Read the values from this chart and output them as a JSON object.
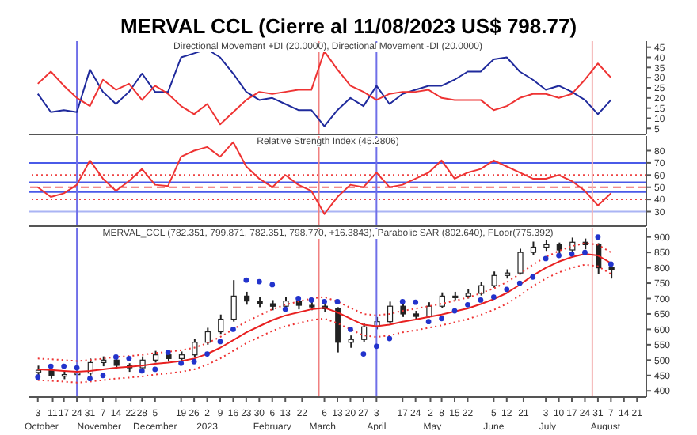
{
  "chart_data": [
    {
      "type": "line",
      "title": "MERVAL CCL (Cierre al 11/08/2023 US$ 798.77)",
      "subtitle": "Directional Movement +DI (20.0000), Directional Movement -DI (20.0000)",
      "x": [
        "2022-10-03",
        "2022-10-10",
        "2022-10-17",
        "2022-10-24",
        "2022-10-31",
        "2022-11-07",
        "2022-11-14",
        "2022-11-21",
        "2022-11-28",
        "2022-12-05",
        "2022-12-12",
        "2022-12-19",
        "2022-12-26",
        "2023-01-02",
        "2023-01-09",
        "2023-01-16",
        "2023-01-23",
        "2023-01-30",
        "2023-02-06",
        "2023-02-13",
        "2023-02-20",
        "2023-02-27",
        "2023-03-06",
        "2023-03-13",
        "2023-03-20",
        "2023-03-27",
        "2023-04-03",
        "2023-04-10",
        "2023-04-17",
        "2023-04-24",
        "2023-05-01",
        "2023-05-08",
        "2023-05-15",
        "2023-05-22",
        "2023-05-29",
        "2023-06-05",
        "2023-06-12",
        "2023-06-19",
        "2023-06-26",
        "2023-07-03",
        "2023-07-10",
        "2023-07-17",
        "2023-07-24",
        "2023-07-31",
        "2023-08-07"
      ],
      "series": [
        {
          "color": "#1f2a9c",
          "values": [
            22,
            13,
            14,
            13,
            34,
            23,
            17,
            23,
            32,
            23,
            23,
            40,
            42,
            44,
            40,
            32,
            23,
            19,
            20,
            17,
            14,
            14,
            6,
            14,
            20,
            16,
            26,
            17,
            22,
            24,
            26,
            26,
            29,
            33,
            33,
            39,
            40,
            33,
            29,
            24,
            26,
            23,
            19,
            12,
            19
          ]
        },
        {
          "color": "#ee3333",
          "values": [
            27,
            33,
            26,
            20,
            16,
            29,
            24,
            27,
            19,
            26,
            22,
            16,
            12,
            17,
            7,
            13,
            19,
            23,
            22,
            23,
            24,
            24,
            43,
            34,
            26,
            23,
            19,
            22,
            23,
            23,
            24,
            20,
            19,
            19,
            19,
            14,
            16,
            20,
            22,
            22,
            20,
            22,
            29,
            37,
            30
          ]
        }
      ],
      "xlim": [
        "2022-09-28",
        "2023-08-26"
      ],
      "ylim": [
        2,
        48
      ],
      "yticks": [
        5,
        10,
        15,
        20,
        25,
        30,
        35,
        40,
        45
      ],
      "tick_labels": "y",
      "line_style": "solid",
      "marker": "none",
      "ref_lines": [
        {
          "axis": "x",
          "value": "2022-10-24",
          "color": "#6f6fe8"
        },
        {
          "axis": "x",
          "value": "2023-03-03",
          "color": "#f08080"
        },
        {
          "axis": "x",
          "value": "2023-04-03",
          "color": "#6f6fe8"
        },
        {
          "axis": "x",
          "value": "2023-07-28",
          "color": "#f4b4b4"
        }
      ]
    },
    {
      "type": "line",
      "subtitle": "Relative Strength Index (45.2806)",
      "x": [
        "2022-10-03",
        "2022-10-10",
        "2022-10-17",
        "2022-10-24",
        "2022-10-31",
        "2022-11-07",
        "2022-11-14",
        "2022-11-21",
        "2022-11-28",
        "2022-12-05",
        "2022-12-12",
        "2022-12-19",
        "2022-12-26",
        "2023-01-02",
        "2023-01-09",
        "2023-01-16",
        "2023-01-23",
        "2023-01-30",
        "2023-02-06",
        "2023-02-13",
        "2023-02-20",
        "2023-02-27",
        "2023-03-06",
        "2023-03-13",
        "2023-03-20",
        "2023-03-27",
        "2023-04-03",
        "2023-04-10",
        "2023-04-17",
        "2023-04-24",
        "2023-05-01",
        "2023-05-08",
        "2023-05-15",
        "2023-05-22",
        "2023-05-29",
        "2023-06-05",
        "2023-06-12",
        "2023-06-19",
        "2023-06-26",
        "2023-07-03",
        "2023-07-10",
        "2023-07-17",
        "2023-07-24",
        "2023-07-31",
        "2023-08-07"
      ],
      "series": [
        {
          "color": "#ee3333",
          "values": [
            50,
            42,
            45,
            52,
            72,
            57,
            47,
            55,
            65,
            52,
            51,
            75,
            80,
            83,
            75,
            87,
            67,
            57,
            50,
            60,
            52,
            47,
            28,
            42,
            52,
            50,
            62,
            50,
            52,
            57,
            62,
            72,
            57,
            62,
            65,
            72,
            67,
            62,
            57,
            57,
            60,
            55,
            47,
            35,
            45
          ]
        }
      ],
      "xlim": [
        "2022-09-28",
        "2023-08-26"
      ],
      "ylim": [
        18,
        92
      ],
      "yticks": [
        30,
        40,
        50,
        60,
        70,
        80
      ],
      "tick_labels": "y",
      "line_style": "solid",
      "marker": "none",
      "ref_lines": [
        {
          "axis": "y",
          "value": 70,
          "color": "#4a5ae8"
        },
        {
          "axis": "y",
          "value": 54,
          "color": "#4a5ae8"
        },
        {
          "axis": "y",
          "value": 46,
          "color": "#4a5ae8"
        },
        {
          "axis": "y",
          "value": 30,
          "color": "#aab4f4"
        },
        {
          "axis": "y",
          "value": 60,
          "color": "#ee4444",
          "line_style": "dotted"
        },
        {
          "axis": "y",
          "value": 40,
          "color": "#ee4444",
          "line_style": "dotted"
        },
        {
          "axis": "y",
          "value": 50,
          "color": "#ee6666",
          "line_style": "dashed"
        },
        {
          "axis": "x",
          "value": "2022-10-24",
          "color": "#6f6fe8"
        },
        {
          "axis": "x",
          "value": "2023-03-03",
          "color": "#f08080"
        },
        {
          "axis": "x",
          "value": "2023-04-03",
          "color": "#6f6fe8"
        },
        {
          "axis": "x",
          "value": "2023-07-28",
          "color": "#f4b4b4"
        }
      ]
    },
    {
      "type": "candlestick",
      "subtitle": "MERVAL_CCL (782.351, 799.871, 782.351, 798.770, +16.3843), Parabolic SAR (802.640), FLoor(775.392)",
      "color": "#222222",
      "x": [
        "2022-10-03",
        "2022-10-10",
        "2022-10-17",
        "2022-10-24",
        "2022-10-31",
        "2022-11-07",
        "2022-11-14",
        "2022-11-21",
        "2022-11-28",
        "2022-12-05",
        "2022-12-12",
        "2022-12-19",
        "2022-12-26",
        "2023-01-02",
        "2023-01-09",
        "2023-01-16",
        "2023-01-23",
        "2023-01-30",
        "2023-02-06",
        "2023-02-13",
        "2023-02-20",
        "2023-02-27",
        "2023-03-06",
        "2023-03-13",
        "2023-03-20",
        "2023-03-27",
        "2023-04-03",
        "2023-04-10",
        "2023-04-17",
        "2023-04-24",
        "2023-05-01",
        "2023-05-08",
        "2023-05-15",
        "2023-05-22",
        "2023-05-29",
        "2023-06-05",
        "2023-06-12",
        "2023-06-19",
        "2023-06-26",
        "2023-07-03",
        "2023-07-10",
        "2023-07-17",
        "2023-07-24",
        "2023-07-31",
        "2023-08-07"
      ],
      "ohlc": [
        [
          460,
          482,
          445,
          467
        ],
        [
          467,
          475,
          440,
          450
        ],
        [
          450,
          465,
          438,
          453
        ],
        [
          453,
          470,
          440,
          458
        ],
        [
          458,
          505,
          450,
          492
        ],
        [
          492,
          512,
          480,
          500
        ],
        [
          500,
          508,
          472,
          483
        ],
        [
          483,
          490,
          462,
          475
        ],
        [
          475,
          512,
          468,
          500
        ],
        [
          500,
          530,
          492,
          517
        ],
        [
          517,
          525,
          495,
          505
        ],
        [
          505,
          528,
          498,
          517
        ],
        [
          517,
          570,
          510,
          558
        ],
        [
          558,
          605,
          550,
          592
        ],
        [
          592,
          648,
          585,
          633
        ],
        [
          633,
          760,
          625,
          708
        ],
        [
          708,
          722,
          680,
          692
        ],
        [
          692,
          705,
          672,
          683
        ],
        [
          683,
          695,
          662,
          675
        ],
        [
          675,
          705,
          668,
          692
        ],
        [
          692,
          700,
          665,
          678
        ],
        [
          678,
          690,
          662,
          675
        ],
        [
          675,
          685,
          655,
          667
        ],
        [
          667,
          672,
          525,
          558
        ],
        [
          558,
          580,
          540,
          567
        ],
        [
          567,
          620,
          560,
          608
        ],
        [
          608,
          640,
          600,
          625
        ],
        [
          625,
          690,
          618,
          675
        ],
        [
          675,
          682,
          640,
          650
        ],
        [
          650,
          660,
          632,
          642
        ],
        [
          642,
          688,
          638,
          675
        ],
        [
          675,
          720,
          668,
          708
        ],
        [
          708,
          722,
          695,
          708
        ],
        [
          708,
          730,
          700,
          717
        ],
        [
          717,
          755,
          710,
          742
        ],
        [
          742,
          788,
          735,
          775
        ],
        [
          775,
          795,
          765,
          783
        ],
        [
          783,
          862,
          778,
          850
        ],
        [
          850,
          885,
          840,
          867
        ],
        [
          867,
          890,
          855,
          875
        ],
        [
          875,
          882,
          845,
          858
        ],
        [
          858,
          898,
          850,
          883
        ],
        [
          883,
          895,
          860,
          875
        ],
        [
          875,
          880,
          780,
          800
        ],
        [
          800,
          812,
          765,
          799
        ]
      ],
      "series": [
        {
          "type": "line",
          "color": "#e82020",
          "line_style": "solid",
          "values": [
            470,
            468,
            465,
            462,
            465,
            470,
            475,
            478,
            482,
            488,
            492,
            497,
            505,
            520,
            540,
            565,
            590,
            610,
            630,
            645,
            655,
            665,
            670,
            655,
            635,
            615,
            610,
            615,
            625,
            632,
            640,
            648,
            658,
            668,
            682,
            698,
            718,
            745,
            775,
            800,
            820,
            835,
            845,
            840,
            815
          ]
        },
        {
          "type": "line",
          "color": "#ee3333",
          "line_style": "dotted",
          "values": [
            505,
            503,
            500,
            497,
            500,
            505,
            510,
            513,
            517,
            523,
            527,
            532,
            540,
            555,
            575,
            600,
            625,
            645,
            665,
            680,
            690,
            700,
            705,
            690,
            670,
            650,
            645,
            650,
            660,
            667,
            675,
            683,
            693,
            703,
            717,
            733,
            753,
            780,
            810,
            835,
            855,
            870,
            880,
            875,
            850
          ]
        },
        {
          "type": "line",
          "color": "#ee3333",
          "line_style": "dotted",
          "values": [
            435,
            433,
            430,
            427,
            430,
            435,
            440,
            443,
            447,
            453,
            457,
            462,
            470,
            485,
            505,
            530,
            555,
            575,
            595,
            610,
            620,
            630,
            635,
            620,
            600,
            580,
            575,
            580,
            590,
            597,
            605,
            613,
            623,
            633,
            647,
            663,
            683,
            710,
            740,
            765,
            785,
            800,
            810,
            805,
            780
          ]
        },
        {
          "type": "scatter",
          "color": "#2233cc",
          "marker": "circle",
          "values": [
            445,
            480,
            480,
            475,
            440,
            450,
            510,
            505,
            465,
            470,
            525,
            490,
            495,
            520,
            560,
            600,
            760,
            755,
            745,
            665,
            700,
            695,
            690,
            690,
            600,
            520,
            545,
            570,
            690,
            688,
            625,
            635,
            660,
            680,
            695,
            705,
            730,
            750,
            770,
            830,
            840,
            845,
            850,
            900,
            812
          ]
        }
      ],
      "xlim": [
        "2022-09-28",
        "2023-08-26"
      ],
      "ylim": [
        380,
        930
      ],
      "yticks": [
        400,
        450,
        500,
        550,
        600,
        650,
        700,
        750,
        800,
        850,
        900
      ],
      "x2lim": [
        "2022-09-28",
        "2023-08-26"
      ],
      "x2ticks": [
        {
          "value": "2022-10-05",
          "label": "October"
        },
        {
          "value": "2022-11-05",
          "label": "November"
        },
        {
          "value": "2022-12-05",
          "label": "December"
        },
        {
          "value": "2023-01-02",
          "label": "2023"
        },
        {
          "value": "2023-02-06",
          "label": "February"
        },
        {
          "value": "2023-03-05",
          "label": "March"
        },
        {
          "value": "2023-04-03",
          "label": "April"
        },
        {
          "value": "2023-05-03",
          "label": "May"
        },
        {
          "value": "2023-06-05",
          "label": "June"
        },
        {
          "value": "2023-07-04",
          "label": "July"
        },
        {
          "value": "2023-08-04",
          "label": "August"
        }
      ],
      "xticks": [
        {
          "value": "2022-10-03",
          "label": "3"
        },
        {
          "value": "2022-10-11",
          "label": "11"
        },
        {
          "value": "2022-10-17",
          "label": "17"
        },
        {
          "value": "2022-10-24",
          "label": "24"
        },
        {
          "value": "2022-10-31",
          "label": "31"
        },
        {
          "value": "2022-11-07",
          "label": "7"
        },
        {
          "value": "2022-11-14",
          "label": "14"
        },
        {
          "value": "2022-11-22",
          "label": "22"
        },
        {
          "value": "2022-11-28",
          "label": "28"
        },
        {
          "value": "2022-12-05",
          "label": "5"
        },
        {
          "value": "2022-12-19",
          "label": "19"
        },
        {
          "value": "2022-12-26",
          "label": "26"
        },
        {
          "value": "2023-01-02",
          "label": "2"
        },
        {
          "value": "2023-01-09",
          "label": "9"
        },
        {
          "value": "2023-01-16",
          "label": "16"
        },
        {
          "value": "2023-01-23",
          "label": "23"
        },
        {
          "value": "2023-01-30",
          "label": "30"
        },
        {
          "value": "2023-02-06",
          "label": "6"
        },
        {
          "value": "2023-02-13",
          "label": "13"
        },
        {
          "value": "2023-02-22",
          "label": "22"
        },
        {
          "value": "2023-03-06",
          "label": "6"
        },
        {
          "value": "2023-03-13",
          "label": "13"
        },
        {
          "value": "2023-03-20",
          "label": "20"
        },
        {
          "value": "2023-03-27",
          "label": "27"
        },
        {
          "value": "2023-04-03",
          "label": "3"
        },
        {
          "value": "2023-04-17",
          "label": "17"
        },
        {
          "value": "2023-04-24",
          "label": "24"
        },
        {
          "value": "2023-05-02",
          "label": "2"
        },
        {
          "value": "2023-05-08",
          "label": "8"
        },
        {
          "value": "2023-05-15",
          "label": "15"
        },
        {
          "value": "2023-05-22",
          "label": "22"
        },
        {
          "value": "2023-06-05",
          "label": "5"
        },
        {
          "value": "2023-06-12",
          "label": "12"
        },
        {
          "value": "2023-06-21",
          "label": "21"
        },
        {
          "value": "2023-07-03",
          "label": "3"
        },
        {
          "value": "2023-07-10",
          "label": "10"
        },
        {
          "value": "2023-07-17",
          "label": "17"
        },
        {
          "value": "2023-07-24",
          "label": "24"
        },
        {
          "value": "2023-07-31",
          "label": "31"
        },
        {
          "value": "2023-08-07",
          "label": "7"
        },
        {
          "value": "2023-08-14",
          "label": "14"
        },
        {
          "value": "2023-08-21",
          "label": "21"
        }
      ],
      "ref_lines": [
        {
          "axis": "x",
          "value": "2022-10-24",
          "color": "#6f6fe8"
        },
        {
          "axis": "x",
          "value": "2023-03-03",
          "color": "#f08080"
        },
        {
          "axis": "x",
          "value": "2023-04-03",
          "color": "#6f6fe8"
        },
        {
          "axis": "x",
          "value": "2023-07-28",
          "color": "#f4b4b4"
        }
      ]
    }
  ]
}
